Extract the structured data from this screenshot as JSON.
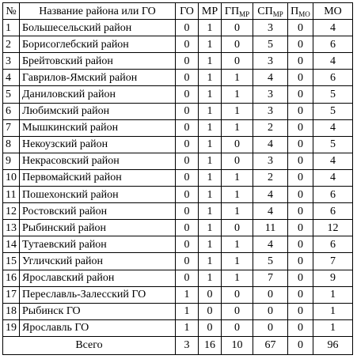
{
  "headers": {
    "num": "№",
    "name": "Название района или ГО",
    "go": "ГО",
    "mr": "МР",
    "gp_base": "ГП",
    "gp_sub": "МР",
    "sp_base": "СП",
    "sp_sub": "МР",
    "p_base": "П",
    "p_sub": "МО",
    "mo": "МО"
  },
  "rows": [
    {
      "n": "1",
      "name": "Большесельский район",
      "go": "0",
      "mr": "1",
      "gp": "0",
      "sp": "3",
      "p": "0",
      "mo": "4"
    },
    {
      "n": "2",
      "name": "Борисоглебский район",
      "go": "0",
      "mr": "1",
      "gp": "0",
      "sp": "5",
      "p": "0",
      "mo": "6"
    },
    {
      "n": "3",
      "name": "Брейтовский район",
      "go": "0",
      "mr": "1",
      "gp": "0",
      "sp": "3",
      "p": "0",
      "mo": "4"
    },
    {
      "n": "4",
      "name": "Гаврилов-Ямский район",
      "go": "0",
      "mr": "1",
      "gp": "1",
      "sp": "4",
      "p": "0",
      "mo": "6"
    },
    {
      "n": "5",
      "name": "Даниловский район",
      "go": "0",
      "mr": "1",
      "gp": "1",
      "sp": "3",
      "p": "0",
      "mo": "5"
    },
    {
      "n": "6",
      "name": "Любимский район",
      "go": "0",
      "mr": "1",
      "gp": "1",
      "sp": "3",
      "p": "0",
      "mo": "5"
    },
    {
      "n": "7",
      "name": "Мышкинский район",
      "go": "0",
      "mr": "1",
      "gp": "1",
      "sp": "2",
      "p": "0",
      "mo": "4"
    },
    {
      "n": "8",
      "name": "Некоузский район",
      "go": "0",
      "mr": "1",
      "gp": "0",
      "sp": "4",
      "p": "0",
      "mo": "5"
    },
    {
      "n": "9",
      "name": "Некрасовский район",
      "go": "0",
      "mr": "1",
      "gp": "0",
      "sp": "3",
      "p": "0",
      "mo": "4"
    },
    {
      "n": "10",
      "name": "Первомайский район",
      "go": "0",
      "mr": "1",
      "gp": "1",
      "sp": "2",
      "p": "0",
      "mo": "4"
    },
    {
      "n": "11",
      "name": "Пошехонский район",
      "go": "0",
      "mr": "1",
      "gp": "1",
      "sp": "4",
      "p": "0",
      "mo": "6"
    },
    {
      "n": "12",
      "name": "Ростовский район",
      "go": "0",
      "mr": "1",
      "gp": "1",
      "sp": "4",
      "p": "0",
      "mo": "6"
    },
    {
      "n": "13",
      "name": "Рыбинский район",
      "go": "0",
      "mr": "1",
      "gp": "0",
      "sp": "11",
      "p": "0",
      "mo": "12"
    },
    {
      "n": "14",
      "name": "Тутаевский район",
      "go": "0",
      "mr": "1",
      "gp": "1",
      "sp": "4",
      "p": "0",
      "mo": "6"
    },
    {
      "n": "15",
      "name": "Угличский район",
      "go": "0",
      "mr": "1",
      "gp": "1",
      "sp": "5",
      "p": "0",
      "mo": "7"
    },
    {
      "n": "16",
      "name": "Ярославский район",
      "go": "0",
      "mr": "1",
      "gp": "1",
      "sp": "7",
      "p": "0",
      "mo": "9"
    },
    {
      "n": "17",
      "name": "Переславль-Залесский ГО",
      "go": "1",
      "mr": "0",
      "gp": "0",
      "sp": "0",
      "p": "0",
      "mo": "1"
    },
    {
      "n": "18",
      "name": "Рыбинск ГО",
      "go": "1",
      "mr": "0",
      "gp": "0",
      "sp": "0",
      "p": "0",
      "mo": "1"
    },
    {
      "n": "19",
      "name": "Ярославль ГО",
      "go": "1",
      "mr": "0",
      "gp": "0",
      "sp": "0",
      "p": "0",
      "mo": "1"
    }
  ],
  "total": {
    "label": "Всего",
    "go": "3",
    "mr": "16",
    "gp": "10",
    "sp": "67",
    "p": "0",
    "mo": "96"
  }
}
